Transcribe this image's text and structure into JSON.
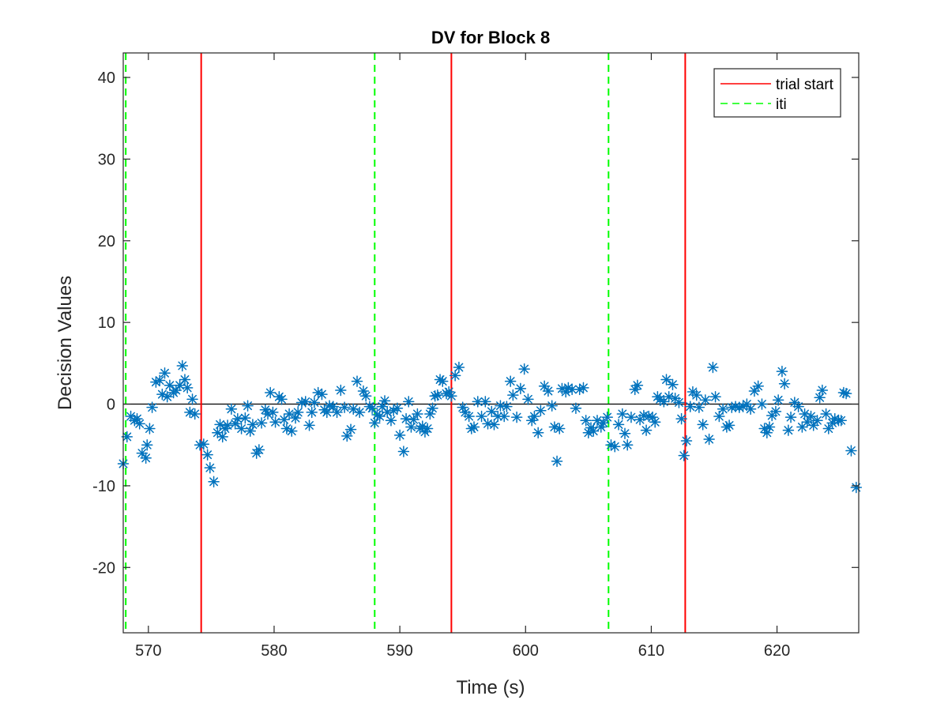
{
  "chart_data": {
    "type": "scatter",
    "title": "DV for Block 8",
    "xlabel": "Time (s)",
    "ylabel": "Decision Values",
    "xlim": [
      568,
      626.5
    ],
    "ylim": [
      -28,
      43
    ],
    "xticks": [
      570,
      580,
      590,
      600,
      610,
      620
    ],
    "yticks": [
      -20,
      -10,
      0,
      10,
      20,
      30,
      40
    ],
    "grid": false,
    "legend_position": "top-right",
    "marker_color": "#0072BD",
    "marker": "asterisk",
    "reference_line": {
      "y": 0,
      "color": "#000000"
    },
    "series": [
      {
        "values": [
          [
            568.0,
            -7.3
          ],
          [
            568.3,
            -4.0
          ],
          [
            568.6,
            -1.5
          ],
          [
            568.9,
            -2.0
          ],
          [
            569.1,
            -1.8
          ],
          [
            569.3,
            -2.4
          ],
          [
            569.5,
            -6.0
          ],
          [
            569.8,
            -6.6
          ],
          [
            569.9,
            -5.0
          ],
          [
            570.1,
            -3.0
          ],
          [
            570.3,
            -0.4
          ],
          [
            570.6,
            2.7
          ],
          [
            570.9,
            2.9
          ],
          [
            571.1,
            1.2
          ],
          [
            571.3,
            3.8
          ],
          [
            571.5,
            0.9
          ],
          [
            571.7,
            2.3
          ],
          [
            572.0,
            1.4
          ],
          [
            572.2,
            1.7
          ],
          [
            572.5,
            2.3
          ],
          [
            572.7,
            4.7
          ],
          [
            572.9,
            3.0
          ],
          [
            573.1,
            2.0
          ],
          [
            573.3,
            -1.0
          ],
          [
            573.5,
            0.6
          ],
          [
            573.7,
            -1.2
          ],
          [
            574.1,
            -5.0
          ],
          [
            574.4,
            -4.9
          ],
          [
            574.7,
            -6.2
          ],
          [
            574.9,
            -7.8
          ],
          [
            575.2,
            -9.5
          ],
          [
            575.5,
            -3.5
          ],
          [
            575.7,
            -2.5
          ],
          [
            575.9,
            -4.0
          ],
          [
            576.1,
            -3.0
          ],
          [
            576.3,
            -2.6
          ],
          [
            576.6,
            -0.6
          ],
          [
            576.9,
            -2.4
          ],
          [
            577.1,
            -1.8
          ],
          [
            577.4,
            -3.0
          ],
          [
            577.7,
            -1.7
          ],
          [
            577.9,
            -0.2
          ],
          [
            578.1,
            -3.3
          ],
          [
            578.3,
            -2.5
          ],
          [
            578.6,
            -6.0
          ],
          [
            578.8,
            -5.6
          ],
          [
            579.0,
            -2.3
          ],
          [
            579.3,
            -0.7
          ],
          [
            579.5,
            -1.2
          ],
          [
            579.7,
            1.4
          ],
          [
            579.9,
            -1.0
          ],
          [
            580.1,
            -2.2
          ],
          [
            580.4,
            0.9
          ],
          [
            580.6,
            0.6
          ],
          [
            580.8,
            -1.9
          ],
          [
            581.0,
            -3.0
          ],
          [
            581.2,
            -1.2
          ],
          [
            581.4,
            -3.3
          ],
          [
            581.7,
            -1.7
          ],
          [
            581.9,
            -1.0
          ],
          [
            582.2,
            0.2
          ],
          [
            582.5,
            0.3
          ],
          [
            582.8,
            -2.6
          ],
          [
            583.0,
            -1.0
          ],
          [
            583.2,
            0.2
          ],
          [
            583.5,
            1.4
          ],
          [
            583.8,
            1.2
          ],
          [
            584.0,
            -0.7
          ],
          [
            584.2,
            -1.0
          ],
          [
            584.4,
            -0.2
          ],
          [
            584.7,
            -0.3
          ],
          [
            585.0,
            -1.0
          ],
          [
            585.3,
            1.7
          ],
          [
            585.6,
            -0.4
          ],
          [
            585.8,
            -3.9
          ],
          [
            586.1,
            -3.1
          ],
          [
            586.3,
            -0.6
          ],
          [
            586.6,
            2.8
          ],
          [
            586.8,
            -1.0
          ],
          [
            587.1,
            1.6
          ],
          [
            587.3,
            1.0
          ],
          [
            587.6,
            -0.3
          ],
          [
            587.8,
            -0.5
          ],
          [
            588.0,
            -2.3
          ],
          [
            588.2,
            -1.3
          ],
          [
            588.4,
            -1.5
          ],
          [
            588.6,
            -0.3
          ],
          [
            588.8,
            0.4
          ],
          [
            589.0,
            -1.0
          ],
          [
            589.3,
            -2.0
          ],
          [
            589.5,
            -0.8
          ],
          [
            589.8,
            -0.5
          ],
          [
            590.0,
            -3.8
          ],
          [
            590.3,
            -5.8
          ],
          [
            590.5,
            -1.8
          ],
          [
            590.7,
            0.3
          ],
          [
            590.9,
            -2.8
          ],
          [
            591.1,
            -1.9
          ],
          [
            591.4,
            -1.2
          ],
          [
            591.6,
            -3.0
          ],
          [
            591.8,
            -2.7
          ],
          [
            592.0,
            -3.4
          ],
          [
            592.2,
            -3.0
          ],
          [
            592.4,
            -1.2
          ],
          [
            592.6,
            -0.5
          ],
          [
            592.8,
            1.0
          ],
          [
            593.0,
            1.1
          ],
          [
            593.2,
            3.0
          ],
          [
            593.4,
            2.8
          ],
          [
            593.7,
            1.3
          ],
          [
            593.9,
            1.5
          ],
          [
            594.1,
            1.0
          ],
          [
            594.4,
            3.5
          ],
          [
            594.7,
            4.5
          ],
          [
            595.0,
            -0.4
          ],
          [
            595.2,
            -1.0
          ],
          [
            595.5,
            -1.5
          ],
          [
            595.7,
            -3.0
          ],
          [
            595.9,
            -2.8
          ],
          [
            596.2,
            0.3
          ],
          [
            596.5,
            -1.5
          ],
          [
            596.8,
            0.3
          ],
          [
            597.0,
            -2.4
          ],
          [
            597.3,
            -0.9
          ],
          [
            597.5,
            -2.5
          ],
          [
            597.8,
            -1.5
          ],
          [
            598.0,
            -0.2
          ],
          [
            598.3,
            -1.5
          ],
          [
            598.5,
            -0.3
          ],
          [
            598.8,
            2.8
          ],
          [
            599.0,
            1.1
          ],
          [
            599.3,
            -1.6
          ],
          [
            599.6,
            1.9
          ],
          [
            599.9,
            4.3
          ],
          [
            600.2,
            0.6
          ],
          [
            600.5,
            -2.0
          ],
          [
            600.7,
            -1.5
          ],
          [
            601.0,
            -3.5
          ],
          [
            601.2,
            -0.8
          ],
          [
            601.5,
            2.2
          ],
          [
            601.8,
            1.6
          ],
          [
            602.1,
            -0.2
          ],
          [
            602.3,
            -2.8
          ],
          [
            602.5,
            -7.0
          ],
          [
            602.7,
            -3.0
          ],
          [
            602.9,
            1.9
          ],
          [
            603.2,
            1.5
          ],
          [
            603.4,
            2.0
          ],
          [
            603.7,
            1.8
          ],
          [
            604.0,
            -0.5
          ],
          [
            604.3,
            1.8
          ],
          [
            604.6,
            2.0
          ],
          [
            604.8,
            -2.0
          ],
          [
            605.0,
            -3.5
          ],
          [
            605.2,
            -2.9
          ],
          [
            605.4,
            -3.3
          ],
          [
            605.7,
            -2.0
          ],
          [
            606.0,
            -2.8
          ],
          [
            606.2,
            -2.3
          ],
          [
            606.5,
            -1.6
          ],
          [
            606.8,
            -5.0
          ],
          [
            607.1,
            -5.2
          ],
          [
            607.4,
            -2.5
          ],
          [
            607.7,
            -1.2
          ],
          [
            607.9,
            -3.6
          ],
          [
            608.1,
            -5.0
          ],
          [
            608.4,
            -1.6
          ],
          [
            608.7,
            1.8
          ],
          [
            608.9,
            2.3
          ],
          [
            609.1,
            -1.9
          ],
          [
            609.4,
            -1.4
          ],
          [
            609.6,
            -3.2
          ],
          [
            609.8,
            -1.5
          ],
          [
            610.1,
            -1.6
          ],
          [
            610.3,
            -2.2
          ],
          [
            610.5,
            0.9
          ],
          [
            610.7,
            0.6
          ],
          [
            611.0,
            0.3
          ],
          [
            611.2,
            3.0
          ],
          [
            611.4,
            0.9
          ],
          [
            611.7,
            2.4
          ],
          [
            611.9,
            0.7
          ],
          [
            612.2,
            0.2
          ],
          [
            612.4,
            -1.8
          ],
          [
            612.6,
            -6.3
          ],
          [
            612.8,
            -4.5
          ],
          [
            613.1,
            -0.3
          ],
          [
            613.3,
            1.5
          ],
          [
            613.6,
            1.1
          ],
          [
            613.8,
            -0.4
          ],
          [
            614.1,
            -2.5
          ],
          [
            614.3,
            0.5
          ],
          [
            614.6,
            -4.3
          ],
          [
            614.9,
            4.5
          ],
          [
            615.1,
            0.9
          ],
          [
            615.4,
            -1.5
          ],
          [
            615.7,
            -0.6
          ],
          [
            616.0,
            -2.8
          ],
          [
            616.2,
            -2.6
          ],
          [
            616.4,
            -0.4
          ],
          [
            616.7,
            -0.3
          ],
          [
            617.0,
            -0.4
          ],
          [
            617.3,
            -0.3
          ],
          [
            617.6,
            0.0
          ],
          [
            617.9,
            -0.6
          ],
          [
            618.2,
            1.6
          ],
          [
            618.5,
            2.2
          ],
          [
            618.8,
            0.0
          ],
          [
            619.0,
            -3.0
          ],
          [
            619.2,
            -3.5
          ],
          [
            619.4,
            -2.8
          ],
          [
            619.6,
            -1.4
          ],
          [
            619.9,
            -0.9
          ],
          [
            620.1,
            0.5
          ],
          [
            620.4,
            4.0
          ],
          [
            620.6,
            2.5
          ],
          [
            620.9,
            -3.2
          ],
          [
            621.1,
            -1.6
          ],
          [
            621.4,
            0.2
          ],
          [
            621.7,
            -0.3
          ],
          [
            622.0,
            -2.8
          ],
          [
            622.2,
            -1.2
          ],
          [
            622.4,
            -2.2
          ],
          [
            622.7,
            -1.5
          ],
          [
            622.9,
            -2.6
          ],
          [
            623.2,
            -2.0
          ],
          [
            623.4,
            0.8
          ],
          [
            623.6,
            1.7
          ],
          [
            623.9,
            -1.2
          ],
          [
            624.1,
            -3.0
          ],
          [
            624.4,
            -2.3
          ],
          [
            624.6,
            -1.8
          ],
          [
            624.9,
            -2.0
          ],
          [
            625.1,
            -2.0
          ],
          [
            625.3,
            1.4
          ],
          [
            625.5,
            1.3
          ],
          [
            625.9,
            -5.7
          ],
          [
            626.3,
            -10.2
          ]
        ]
      },
      {
        "name": "trial start",
        "style": "solid",
        "color": "#FF0000",
        "x": [
          574.2,
          594.1,
          612.7
        ]
      },
      {
        "name": "iti",
        "style": "dashed",
        "color": "#00FF00",
        "x": [
          568.2,
          588.0,
          606.6
        ]
      }
    ]
  }
}
